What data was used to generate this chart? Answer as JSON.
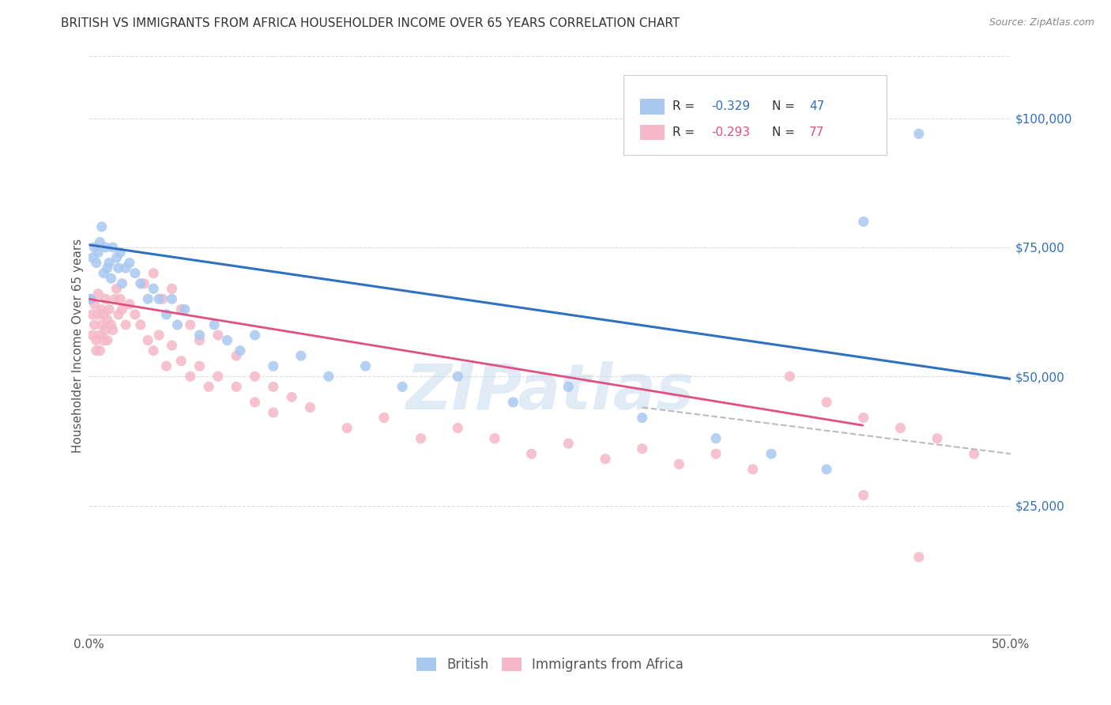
{
  "title": "BRITISH VS IMMIGRANTS FROM AFRICA HOUSEHOLDER INCOME OVER 65 YEARS CORRELATION CHART",
  "source": "Source: ZipAtlas.com",
  "ylabel": "Householder Income Over 65 years",
  "ylabel_right_ticks": [
    "$25,000",
    "$50,000",
    "$75,000",
    "$100,000"
  ],
  "ylabel_right_values": [
    25000,
    50000,
    75000,
    100000
  ],
  "british_color": "#A8C8F0",
  "africa_color": "#F5B8C8",
  "blue_line_color": "#3070C0",
  "pink_line_color": "#E05080",
  "dashed_line_color": "#BBBBBB",
  "watermark": "ZIPatlas",
  "british_x": [
    0.001,
    0.002,
    0.003,
    0.004,
    0.005,
    0.006,
    0.007,
    0.008,
    0.009,
    0.01,
    0.011,
    0.012,
    0.013,
    0.015,
    0.016,
    0.017,
    0.018,
    0.02,
    0.022,
    0.025,
    0.028,
    0.032,
    0.035,
    0.038,
    0.042,
    0.045,
    0.048,
    0.052,
    0.06,
    0.068,
    0.075,
    0.082,
    0.09,
    0.1,
    0.115,
    0.13,
    0.15,
    0.17,
    0.2,
    0.23,
    0.26,
    0.3,
    0.34,
    0.37,
    0.4,
    0.42,
    0.45
  ],
  "british_y": [
    65000,
    73000,
    75000,
    72000,
    74000,
    76000,
    79000,
    70000,
    75000,
    71000,
    72000,
    69000,
    75000,
    73000,
    71000,
    74000,
    68000,
    71000,
    72000,
    70000,
    68000,
    65000,
    67000,
    65000,
    62000,
    65000,
    60000,
    63000,
    58000,
    60000,
    57000,
    55000,
    58000,
    52000,
    54000,
    50000,
    52000,
    48000,
    50000,
    45000,
    48000,
    42000,
    38000,
    35000,
    32000,
    80000,
    97000
  ],
  "africa_x": [
    0.001,
    0.002,
    0.002,
    0.003,
    0.003,
    0.004,
    0.004,
    0.005,
    0.005,
    0.006,
    0.006,
    0.007,
    0.007,
    0.008,
    0.008,
    0.009,
    0.009,
    0.01,
    0.01,
    0.011,
    0.012,
    0.013,
    0.014,
    0.015,
    0.016,
    0.017,
    0.018,
    0.02,
    0.022,
    0.025,
    0.028,
    0.032,
    0.035,
    0.038,
    0.042,
    0.045,
    0.05,
    0.055,
    0.06,
    0.065,
    0.07,
    0.08,
    0.09,
    0.1,
    0.11,
    0.12,
    0.14,
    0.16,
    0.18,
    0.2,
    0.22,
    0.24,
    0.26,
    0.28,
    0.3,
    0.32,
    0.34,
    0.36,
    0.38,
    0.4,
    0.42,
    0.44,
    0.46,
    0.48,
    0.03,
    0.035,
    0.04,
    0.045,
    0.05,
    0.055,
    0.06,
    0.07,
    0.08,
    0.09,
    0.1,
    0.42,
    0.45
  ],
  "africa_y": [
    65000,
    62000,
    58000,
    64000,
    60000,
    57000,
    55000,
    66000,
    62000,
    58000,
    55000,
    60000,
    63000,
    62000,
    57000,
    59000,
    65000,
    61000,
    57000,
    63000,
    60000,
    59000,
    65000,
    67000,
    62000,
    65000,
    63000,
    60000,
    64000,
    62000,
    60000,
    57000,
    55000,
    58000,
    52000,
    56000,
    53000,
    50000,
    52000,
    48000,
    50000,
    48000,
    45000,
    43000,
    46000,
    44000,
    40000,
    42000,
    38000,
    40000,
    38000,
    35000,
    37000,
    34000,
    36000,
    33000,
    35000,
    32000,
    50000,
    45000,
    42000,
    40000,
    38000,
    35000,
    68000,
    70000,
    65000,
    67000,
    63000,
    60000,
    57000,
    58000,
    54000,
    50000,
    48000,
    27000,
    15000
  ],
  "xlim": [
    0.0,
    0.5
  ],
  "ylim": [
    0,
    112000
  ],
  "blue_trend_x": [
    0.0,
    0.5
  ],
  "blue_trend_y": [
    75500,
    49500
  ],
  "pink_trend_x": [
    0.0,
    0.42
  ],
  "pink_trend_y": [
    65000,
    40500
  ],
  "dashed_trend_x": [
    0.3,
    0.5
  ],
  "dashed_trend_y": [
    44000,
    35000
  ]
}
